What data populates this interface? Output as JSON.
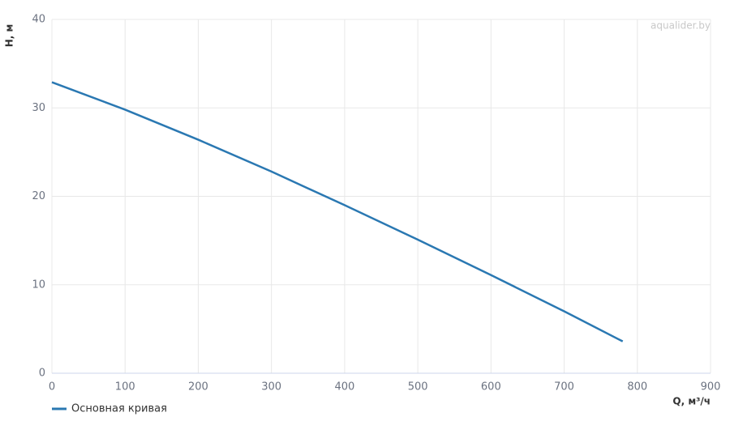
{
  "chart_data": {
    "type": "line",
    "watermark": "aqualider.by",
    "x_label": "Q, м³/ч",
    "y_label": "H, м",
    "x": [
      0,
      100,
      200,
      300,
      400,
      500,
      600,
      700,
      780
    ],
    "series": [
      {
        "name": "Основная кривая",
        "color": "#2a78b2",
        "values": [
          32.9,
          29.8,
          26.4,
          22.8,
          19.0,
          15.1,
          11.1,
          7.0,
          3.6
        ]
      }
    ],
    "xlim": [
      0,
      900
    ],
    "xticks": [
      0,
      100,
      200,
      300,
      400,
      500,
      600,
      700,
      800,
      900
    ],
    "ylim": [
      0,
      40
    ],
    "yticks": [
      0,
      10,
      20,
      30,
      40
    ],
    "grid": true,
    "legend": "bottom-left"
  }
}
